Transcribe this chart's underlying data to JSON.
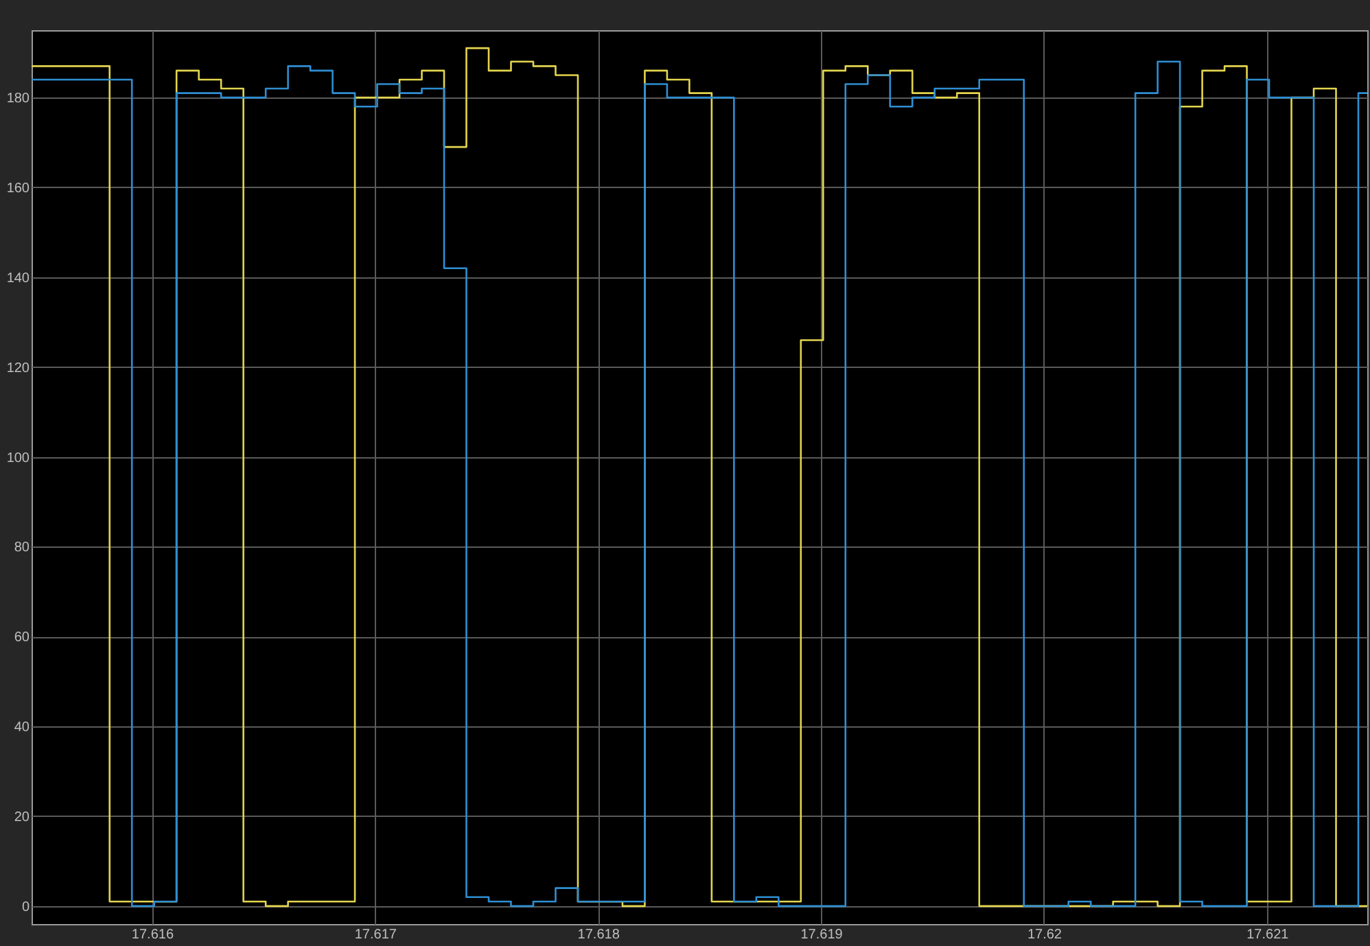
{
  "chart_data": {
    "type": "step",
    "grid": true,
    "xlim": [
      17.61546,
      17.62145
    ],
    "ylim": [
      -4,
      195
    ],
    "xticks": [
      17.616,
      17.617,
      17.618,
      17.619,
      17.62,
      17.621
    ],
    "yticks": [
      0,
      20,
      40,
      60,
      80,
      100,
      120,
      140,
      160,
      180
    ],
    "series": [
      {
        "color": "#e3d54e",
        "x": [
          17.61546,
          17.61581,
          17.61611,
          17.61621,
          17.61631,
          17.61641,
          17.61651,
          17.61661,
          17.61691,
          17.61711,
          17.61721,
          17.61731,
          17.61741,
          17.61751,
          17.61761,
          17.61771,
          17.61781,
          17.61791,
          17.61811,
          17.61821,
          17.61831,
          17.61841,
          17.61851,
          17.61891,
          17.61901,
          17.61911,
          17.61921,
          17.61931,
          17.61941,
          17.61951,
          17.61961,
          17.61971,
          17.62031,
          17.62051,
          17.62061,
          17.62071,
          17.62081,
          17.62091,
          17.62111,
          17.62121,
          17.62131,
          17.62145
        ],
        "values": [
          187,
          1,
          186,
          184,
          182,
          1,
          0,
          1,
          180,
          184,
          186,
          169,
          191,
          186,
          188,
          187,
          185,
          1,
          0,
          186,
          184,
          181,
          1,
          126,
          186,
          187,
          185,
          186,
          181,
          180,
          181,
          0,
          1,
          0,
          178,
          186,
          187,
          1,
          180,
          182,
          0,
          0
        ]
      },
      {
        "color": "#2f8fd2",
        "x": [
          17.61546,
          17.61591,
          17.61601,
          17.61611,
          17.61631,
          17.61651,
          17.61661,
          17.61671,
          17.61681,
          17.61691,
          17.61701,
          17.61711,
          17.61721,
          17.61731,
          17.61741,
          17.61751,
          17.61761,
          17.61771,
          17.61781,
          17.61791,
          17.61821,
          17.61831,
          17.61861,
          17.61871,
          17.61881,
          17.61911,
          17.61921,
          17.61931,
          17.61941,
          17.61951,
          17.61971,
          17.61991,
          17.62011,
          17.62021,
          17.62041,
          17.62051,
          17.62061,
          17.62071,
          17.62091,
          17.62101,
          17.62121,
          17.62141,
          17.62145
        ],
        "values": [
          184,
          0,
          1,
          181,
          180,
          182,
          187,
          186,
          181,
          178,
          183,
          181,
          182,
          142,
          2,
          1,
          0,
          1,
          4,
          1,
          183,
          180,
          1,
          2,
          0,
          183,
          185,
          178,
          180,
          182,
          184,
          0,
          1,
          0,
          181,
          188,
          1,
          0,
          184,
          180,
          0,
          181,
          181
        ]
      }
    ]
  }
}
